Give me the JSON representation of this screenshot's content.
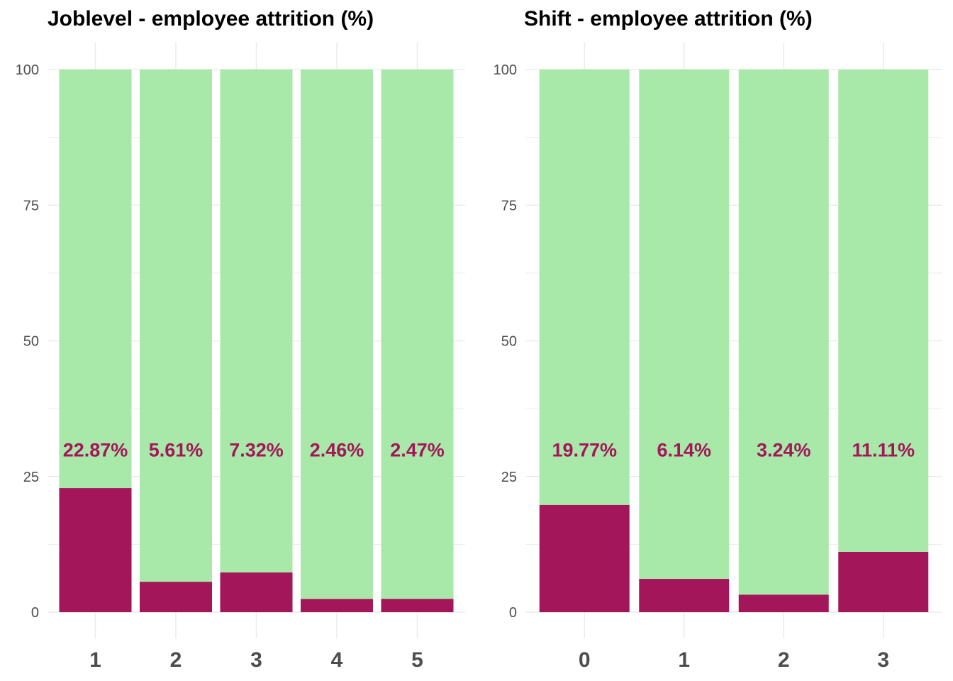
{
  "chart_data": [
    {
      "type": "bar",
      "stacked": true,
      "title": "Joblevel - employee attrition (%)",
      "categories": [
        "1",
        "2",
        "3",
        "4",
        "5"
      ],
      "series": [
        {
          "values": [
            22.87,
            5.61,
            7.32,
            2.46,
            2.47
          ],
          "color": "#A3175A"
        },
        {
          "values": [
            77.13,
            94.39,
            92.68,
            97.54,
            97.53
          ],
          "color": "#A8E8A8"
        }
      ],
      "data_labels": [
        "22.87%",
        "5.61%",
        "7.32%",
        "2.46%",
        "2.47%"
      ],
      "yticks": [
        "0",
        "25",
        "50",
        "75",
        "100"
      ],
      "ylim": [
        0,
        100
      ],
      "grid": true,
      "legend": "none"
    },
    {
      "type": "bar",
      "stacked": true,
      "title": "Shift - employee attrition (%)",
      "categories": [
        "0",
        "1",
        "2",
        "3"
      ],
      "series": [
        {
          "values": [
            19.77,
            6.14,
            3.24,
            11.11
          ],
          "color": "#A3175A"
        },
        {
          "values": [
            80.23,
            93.86,
            96.76,
            88.89
          ],
          "color": "#A8E8A8"
        }
      ],
      "data_labels": [
        "19.77%",
        "6.14%",
        "3.24%",
        "11.11%"
      ],
      "yticks": [
        "0",
        "25",
        "50",
        "75",
        "100"
      ],
      "ylim": [
        0,
        100
      ],
      "grid": true,
      "legend": "none"
    }
  ],
  "colors": {
    "attrition": "#A3175A",
    "retained": "#A8E8A8",
    "label_text": "#A3175A",
    "grid": "#EBEBEB",
    "tick_text": "#4D4D4D"
  }
}
